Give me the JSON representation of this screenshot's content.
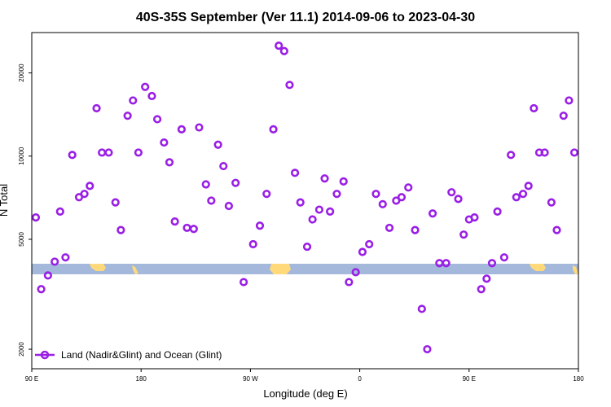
{
  "colors": {
    "series": "#9a1ee6",
    "ocean": "#a3b8da",
    "land": "#ffd97a",
    "axis": "#000000"
  },
  "chart_data": {
    "type": "scatter",
    "title": "40S-35S September (Ver 11.1)   2014-09-06 to 2023-04-30",
    "xlabel": "Longitude (deg E)",
    "ylabel": "N Total",
    "y_scale": "log",
    "xlim": [
      0,
      405
    ],
    "ylim": [
      1700,
      28000
    ],
    "x_ticks": [
      {
        "value": 0,
        "label": "90 E"
      },
      {
        "value": 81,
        "label": "180"
      },
      {
        "value": 162,
        "label": "90 W"
      },
      {
        "value": 243,
        "label": "0"
      },
      {
        "value": 324,
        "label": "90 E"
      },
      {
        "value": 405,
        "label": "180"
      }
    ],
    "y_ticks": [
      2000,
      5000,
      10000,
      20000
    ],
    "legend": {
      "position": "bottom-left",
      "label": "Land (Nadir&Glint) and Ocean (Glint)"
    },
    "grid": false,
    "series": [
      {
        "name": "Land (Nadir&Glint) and Ocean (Glint)",
        "points": [
          [
            3,
            6000
          ],
          [
            7,
            3300
          ],
          [
            12,
            3700
          ],
          [
            17,
            4150
          ],
          [
            21,
            6300
          ],
          [
            25,
            4300
          ],
          [
            30,
            10100
          ],
          [
            35,
            7100
          ],
          [
            39,
            7300
          ],
          [
            43,
            7800
          ],
          [
            48,
            14900
          ],
          [
            52,
            10300
          ],
          [
            57,
            10300
          ],
          [
            62,
            6800
          ],
          [
            66,
            5400
          ],
          [
            71,
            14000
          ],
          [
            75,
            15900
          ],
          [
            79,
            10300
          ],
          [
            84,
            17800
          ],
          [
            89,
            16500
          ],
          [
            93,
            13600
          ],
          [
            98,
            11200
          ],
          [
            102,
            9500
          ],
          [
            106,
            5800
          ],
          [
            111,
            12500
          ],
          [
            115,
            5500
          ],
          [
            120,
            5450
          ],
          [
            124,
            12700
          ],
          [
            129,
            7900
          ],
          [
            133,
            6900
          ],
          [
            138,
            11000
          ],
          [
            142,
            9200
          ],
          [
            146,
            6600
          ],
          [
            151,
            8000
          ],
          [
            157,
            3500
          ],
          [
            164,
            4800
          ],
          [
            169,
            5600
          ],
          [
            174,
            7300
          ],
          [
            179,
            12500
          ],
          [
            183,
            25100
          ],
          [
            187,
            24000
          ],
          [
            191,
            18100
          ],
          [
            195,
            8700
          ],
          [
            199,
            6800
          ],
          [
            204,
            4700
          ],
          [
            208,
            5900
          ],
          [
            213,
            6400
          ],
          [
            217,
            8300
          ],
          [
            221,
            6300
          ],
          [
            226,
            7300
          ],
          [
            231,
            8100
          ],
          [
            235,
            3500
          ],
          [
            240,
            3800
          ],
          [
            245,
            4500
          ],
          [
            250,
            4800
          ],
          [
            255,
            7300
          ],
          [
            260,
            6700
          ],
          [
            265,
            5500
          ],
          [
            270,
            6900
          ],
          [
            274,
            7100
          ],
          [
            279,
            7700
          ],
          [
            284,
            5400
          ],
          [
            289,
            2800
          ],
          [
            293,
            2000
          ],
          [
            297,
            6200
          ],
          [
            302,
            4100
          ],
          [
            307,
            4100
          ],
          [
            311,
            7400
          ],
          [
            316,
            7000
          ],
          [
            320,
            5200
          ],
          [
            324,
            5900
          ],
          [
            328,
            6000
          ],
          [
            333,
            3300
          ],
          [
            337,
            3600
          ],
          [
            341,
            4100
          ],
          [
            345,
            6300
          ],
          [
            350,
            4300
          ],
          [
            355,
            10100
          ],
          [
            359,
            7100
          ],
          [
            364,
            7300
          ],
          [
            368,
            7800
          ],
          [
            372,
            14900
          ],
          [
            376,
            10300
          ],
          [
            380,
            10300
          ],
          [
            385,
            6800
          ],
          [
            389,
            5400
          ],
          [
            394,
            14000
          ],
          [
            398,
            15900
          ],
          [
            402,
            10300
          ]
        ]
      }
    ]
  }
}
